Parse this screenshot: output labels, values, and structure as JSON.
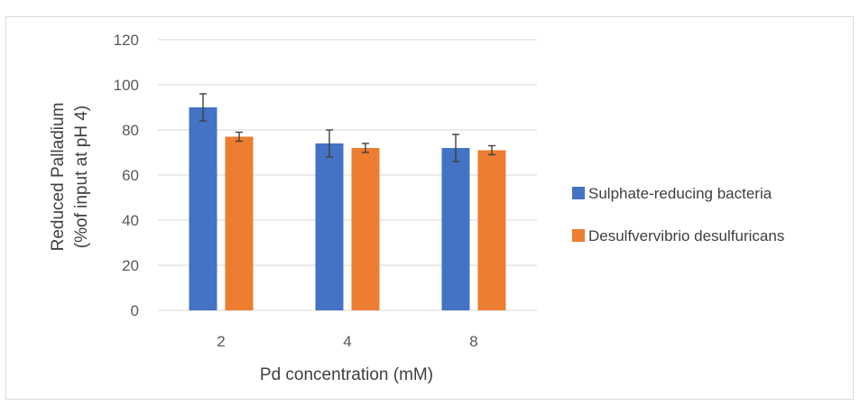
{
  "chart_data": {
    "type": "bar",
    "categories": [
      "2",
      "4",
      "8"
    ],
    "series": [
      {
        "name": "Sulphate-reducing bacteria",
        "color": "#4472C4",
        "values": [
          90,
          74,
          72
        ],
        "errors": [
          6,
          6,
          6
        ]
      },
      {
        "name": "Desulfvervibrio desulfuricans",
        "color": "#ED7D31",
        "values": [
          77,
          72,
          71
        ],
        "errors": [
          2,
          2,
          2
        ]
      }
    ],
    "title": "",
    "xlabel": "Pd concentration (mM)",
    "ylabel_line1": "Reduced Palladium",
    "ylabel_line2": "(%of input  at pH 4)",
    "ylim": [
      0,
      120
    ],
    "yticks": [
      "0",
      "20",
      "40",
      "60",
      "80",
      "100",
      "120"
    ],
    "grid": true,
    "legend_position": "right"
  }
}
